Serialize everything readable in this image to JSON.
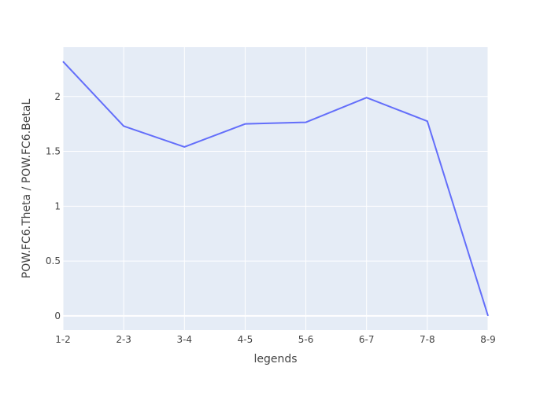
{
  "chart_data": {
    "type": "line",
    "categories": [
      "1-2",
      "2-3",
      "3-4",
      "4-5",
      "5-6",
      "6-7",
      "7-8",
      "8-9"
    ],
    "series": [
      {
        "values": [
          2.32,
          1.73,
          1.54,
          1.75,
          1.765,
          1.99,
          1.775,
          0.0
        ]
      }
    ],
    "xlabel": "legends",
    "ylabel": "POW.FC6.Theta / POW.FC6.BetaL",
    "ylim": [
      -0.13,
      2.45
    ],
    "yticks": [
      0,
      0.5,
      1,
      1.5,
      2
    ],
    "ytick_labels": [
      "0",
      "0.5",
      "1",
      "1.5",
      "2"
    ],
    "grid": true,
    "colors": {
      "line": "#636efa",
      "plot_bg": "#e5ecf6",
      "grid": "#ffffff",
      "text": "#444444"
    }
  }
}
